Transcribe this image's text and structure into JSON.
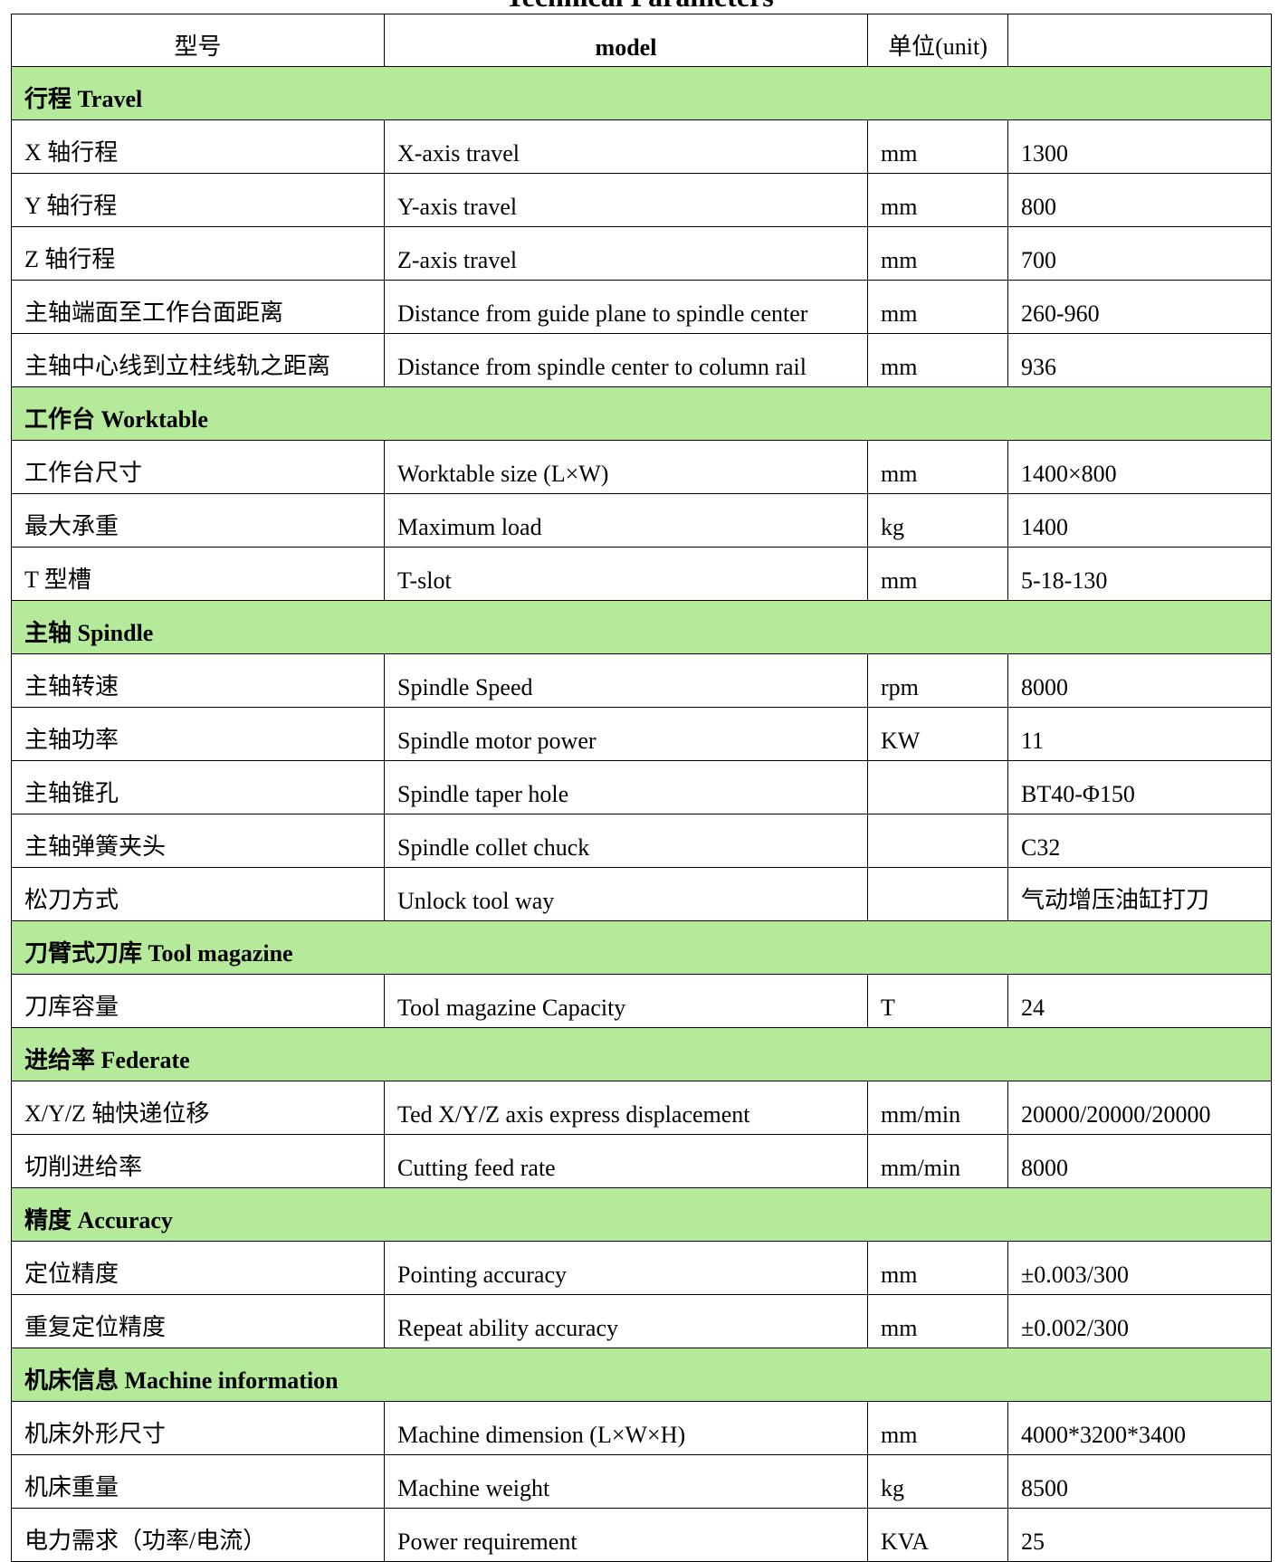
{
  "title": "Technical Parameters",
  "colors": {
    "section_bg": "#b5ea9b"
  },
  "header": {
    "col1": "型号",
    "col2": "model",
    "col3": "单位(unit)",
    "col4": ""
  },
  "sections": [
    {
      "label": "行程 Travel",
      "rows": [
        [
          "X 轴行程",
          "X-axis travel",
          "mm",
          "1300"
        ],
        [
          "Y 轴行程",
          "Y-axis travel",
          "mm",
          "800"
        ],
        [
          "Z 轴行程",
          "Z-axis travel",
          "mm",
          "700"
        ],
        [
          "主轴端面至工作台面距离",
          "Distance from guide plane to spindle center",
          "mm",
          "260-960"
        ],
        [
          "主轴中心线到立柱线轨之距离",
          "Distance from spindle center to column rail",
          "mm",
          "936"
        ]
      ]
    },
    {
      "label": "工作台 Worktable",
      "rows": [
        [
          "工作台尺寸",
          "Worktable size (L×W)",
          "mm",
          "1400×800"
        ],
        [
          "最大承重",
          "Maximum load",
          "kg",
          "1400"
        ],
        [
          "T 型槽",
          "T-slot",
          "mm",
          "5-18-130"
        ]
      ]
    },
    {
      "label": "主轴 Spindle",
      "rows": [
        [
          "主轴转速",
          "Spindle Speed",
          "rpm",
          "8000"
        ],
        [
          "主轴功率",
          "Spindle motor power",
          "KW",
          "11"
        ],
        [
          "主轴锥孔",
          "Spindle taper hole",
          "",
          "BT40-Φ150"
        ],
        [
          "主轴弹簧夹头",
          "Spindle collet chuck",
          "",
          "C32"
        ],
        [
          "松刀方式",
          "Unlock tool way",
          "",
          "气动增压油缸打刀"
        ]
      ]
    },
    {
      "label": "刀臂式刀库 Tool magazine",
      "rows": [
        [
          "刀库容量",
          "Tool magazine Capacity",
          "T",
          "24"
        ]
      ]
    },
    {
      "label": "进给率 Federate",
      "rows": [
        [
          "X/Y/Z 轴快递位移",
          "Ted X/Y/Z axis express displacement",
          "mm/min",
          "20000/20000/20000"
        ],
        [
          "切削进给率",
          "Cutting feed rate",
          "mm/min",
          "8000"
        ]
      ]
    },
    {
      "label": "精度 Accuracy",
      "rows": [
        [
          "定位精度",
          "Pointing accuracy",
          "mm",
          "±0.003/300"
        ],
        [
          "重复定位精度",
          "Repeat ability accuracy",
          "mm",
          "±0.002/300"
        ]
      ]
    },
    {
      "label": "机床信息 Machine information",
      "rows": [
        [
          "机床外形尺寸",
          "Machine dimension (L×W×H)",
          "mm",
          "4000*3200*3400"
        ],
        [
          "机床重量",
          "Machine weight",
          "kg",
          "8500"
        ],
        [
          "电力需求（功率/电流）",
          "Power requirement",
          "KVA",
          "25"
        ]
      ]
    }
  ]
}
